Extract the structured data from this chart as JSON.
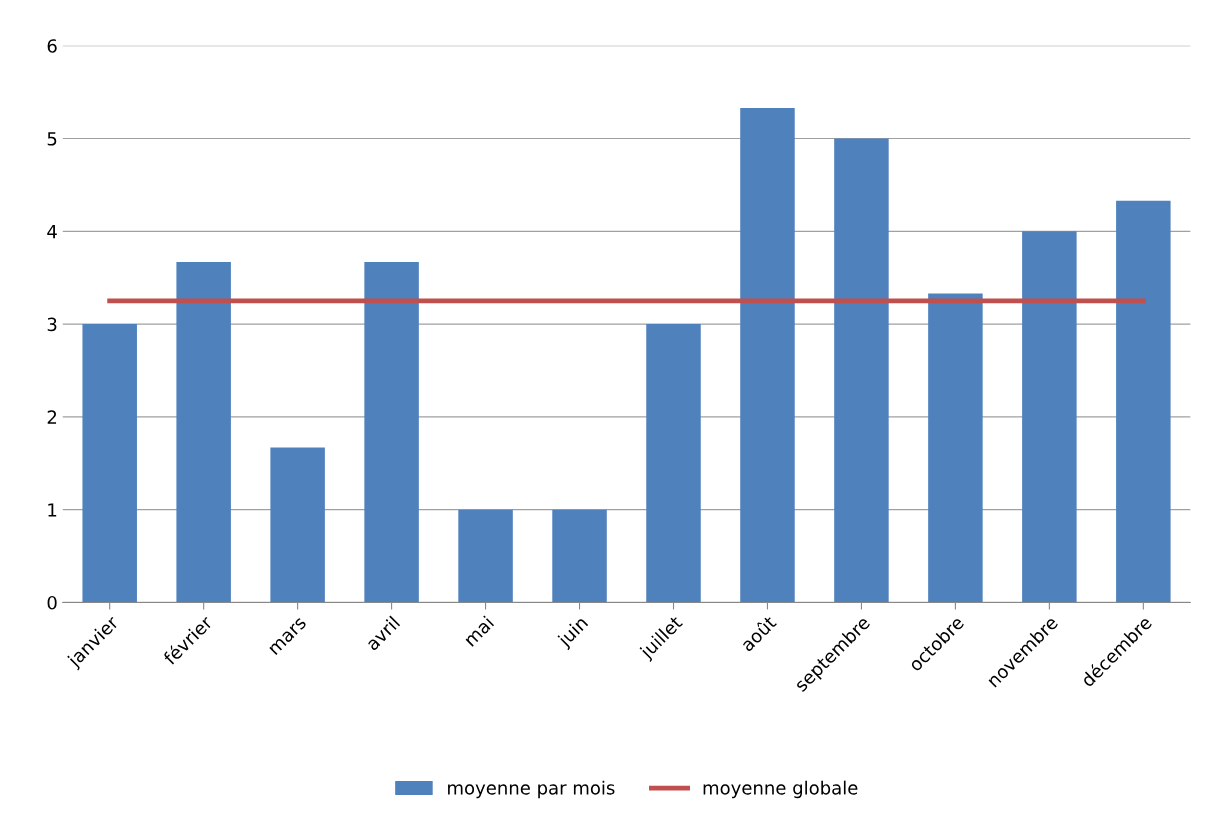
{
  "chart_data": {
    "type": "bar",
    "categories": [
      "janvier",
      "février",
      "mars",
      "avril",
      "mai",
      "juin",
      "juillet",
      "août",
      "septembre",
      "octobre",
      "novembre",
      "décembre"
    ],
    "series": [
      {
        "name": "moyenne par mois",
        "color": "#4f81bd",
        "values": [
          3,
          3.67,
          1.67,
          3.67,
          1,
          1,
          3,
          5.33,
          5,
          3.33,
          4,
          4.33
        ]
      },
      {
        "name": "moyenne globale",
        "type": "line",
        "color": "#c0504d",
        "values": [
          3.25,
          3.25,
          3.25,
          3.25,
          3.25,
          3.25,
          3.25,
          3.25,
          3.25,
          3.25,
          3.25,
          3.25
        ]
      }
    ],
    "ylim": [
      0,
      6
    ],
    "yticks": [
      0,
      1,
      2,
      3,
      4,
      5,
      6
    ],
    "grid": "y",
    "legend": "bottom"
  }
}
